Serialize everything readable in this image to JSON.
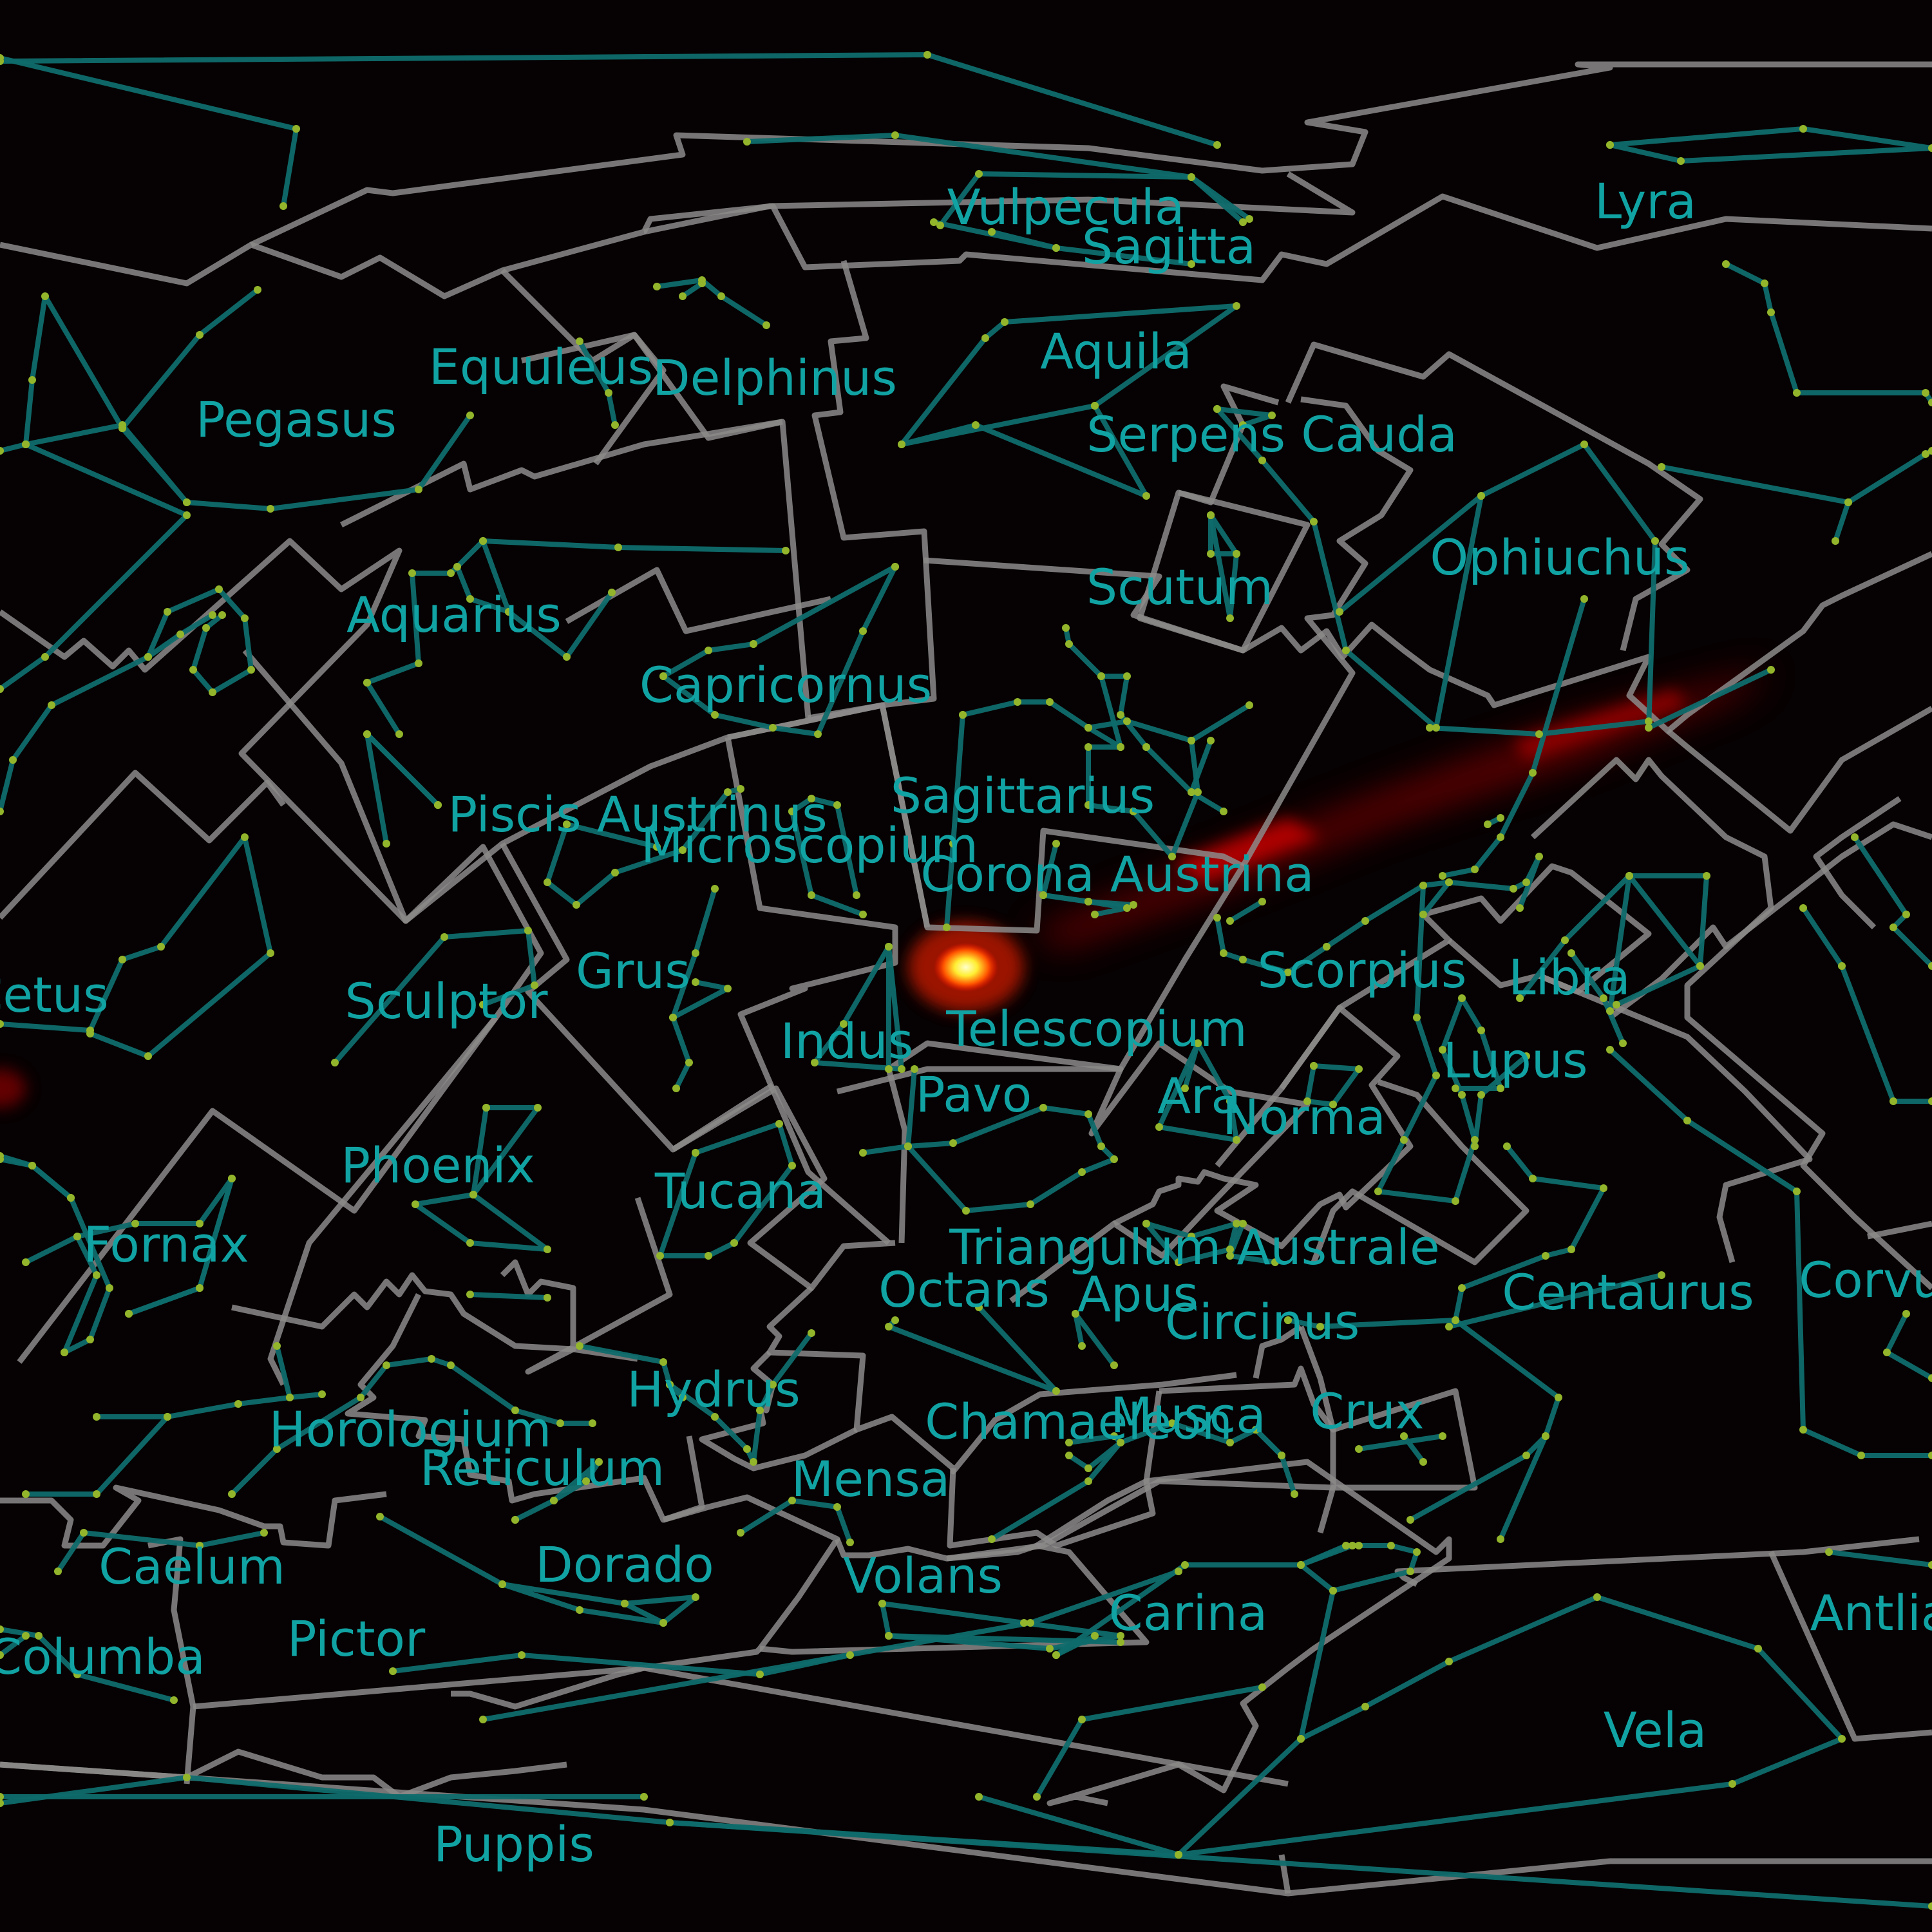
{
  "map": {
    "colors": {
      "background": "#060102",
      "constellation_label": "#11a3a3",
      "constellation_figure": "#0f6b6b",
      "constellation_boundary": "#8c8a8a",
      "star_marker": "#93b52b",
      "source_glow": "#ff2000",
      "source_core": "#ffff99"
    },
    "constellations": [
      "Vulpecula",
      "Sagitta",
      "Lyra",
      "Aquila",
      "Equuleus",
      "Delphinus",
      "Pegasus",
      "Serpens Cauda",
      "Ophiuchus",
      "Scutum",
      "Aquarius",
      "Capricornus",
      "Sagittarius",
      "Piscis Austrinus",
      "Microscopium",
      "Corona Austrina",
      "Scorpius",
      "Libra",
      "Grus",
      "Cetus",
      "Sculptor",
      "Indus",
      "Telescopium",
      "Lupus",
      "Pavo",
      "Ara",
      "Norma",
      "Phoenix",
      "Tucana",
      "Fornax",
      "Triangulum Australe",
      "Octans",
      "Apus",
      "Circinus",
      "Centaurus",
      "Corvus",
      "Hydrus",
      "Horologium",
      "Chamaeleon",
      "Musca",
      "Crux",
      "Reticulum",
      "Mensa",
      "Caelum",
      "Dorado",
      "Volans",
      "Carina",
      "Antlia",
      "Pictor",
      "Columba",
      "Vela",
      "Puppis"
    ]
  }
}
